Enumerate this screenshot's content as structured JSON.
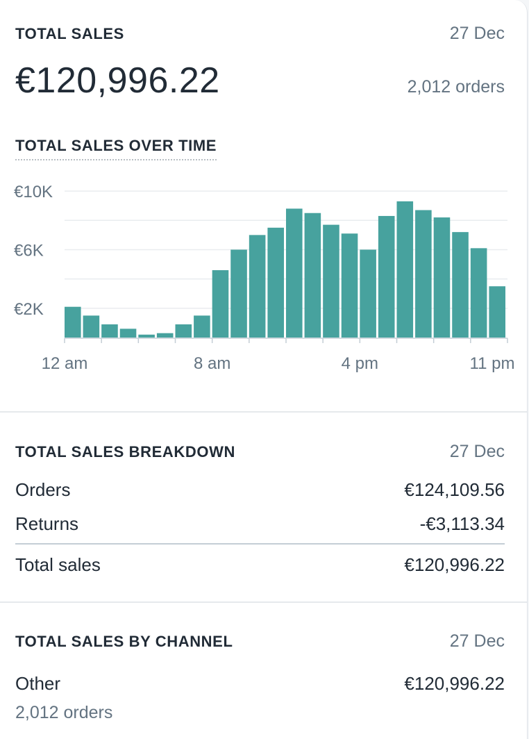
{
  "summary": {
    "title": "TOTAL SALES",
    "date": "27 Dec",
    "amount": "€120,996.22",
    "orders": "2,012 orders"
  },
  "chart_data": {
    "type": "bar",
    "title": "TOTAL SALES OVER TIME",
    "xlabel": "",
    "ylabel": "",
    "ylim": [
      0,
      11000
    ],
    "y_ticks": [
      {
        "value": 10000,
        "label": "€10K"
      },
      {
        "value": 6000,
        "label": "€6K"
      },
      {
        "value": 2000,
        "label": "€2K"
      }
    ],
    "gridlines": [
      2000,
      4000,
      6000,
      8000,
      10000
    ],
    "x_tick_labels": [
      {
        "index": 0,
        "label": "12 am"
      },
      {
        "index": 8,
        "label": "8 am"
      },
      {
        "index": 16,
        "label": "4 pm"
      },
      {
        "index": 23,
        "label": "11 pm"
      }
    ],
    "categories": [
      "0",
      "1",
      "2",
      "3",
      "4",
      "5",
      "6",
      "7",
      "8",
      "9",
      "10",
      "11",
      "12",
      "13",
      "14",
      "15",
      "16",
      "17",
      "18",
      "19",
      "20",
      "21",
      "22",
      "23"
    ],
    "values": [
      2100,
      1500,
      900,
      600,
      200,
      300,
      900,
      1500,
      4600,
      6000,
      7000,
      7500,
      8800,
      8500,
      7700,
      7100,
      6000,
      8300,
      9300,
      8700,
      8200,
      7200,
      6100,
      3500
    ],
    "color": "#47a29e",
    "grid": true
  },
  "breakdown": {
    "title": "TOTAL SALES BREAKDOWN",
    "date": "27 Dec",
    "items": [
      {
        "label": "Orders",
        "value": "€124,109.56"
      },
      {
        "label": "Returns",
        "value": "-€3,113.34"
      }
    ],
    "total": {
      "label": "Total sales",
      "value": "€120,996.22"
    }
  },
  "channel": {
    "title": "TOTAL SALES BY CHANNEL",
    "date": "27 Dec",
    "name": "Other",
    "value": "€120,996.22",
    "orders": "2,012 orders"
  }
}
